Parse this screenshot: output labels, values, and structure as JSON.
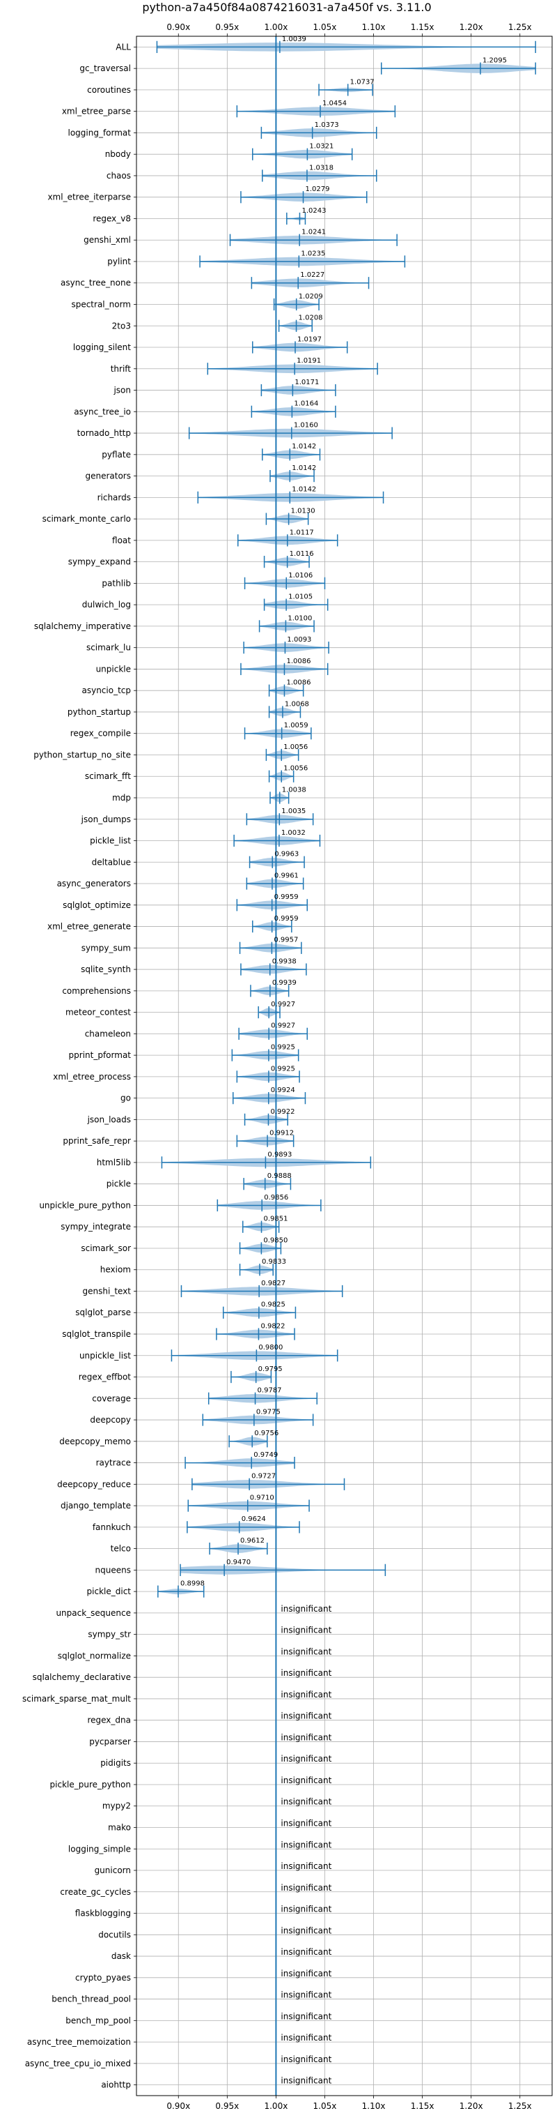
{
  "chart_data": {
    "type": "violin",
    "title": "python-a7a450f84a0874216031-a7a450f vs. 3.11.0",
    "xlabel": "",
    "ylabel": "",
    "xlim": [
      0.857,
      1.283
    ],
    "xticks": [
      0.9,
      0.95,
      1.0,
      1.05,
      1.1,
      1.15,
      1.2,
      1.25
    ],
    "xtick_labels": [
      "0.90x",
      "0.95x",
      "1.00x",
      "1.05x",
      "1.10x",
      "1.15x",
      "1.20x",
      "1.25x"
    ],
    "reference_line": 1.0,
    "grid": true,
    "colors": {
      "violin": "#aecbe5",
      "lines": "#1f77b4",
      "grid": "#b0b0b0"
    },
    "insignificant_label": "insignificant",
    "benchmarks": [
      {
        "name": "ALL",
        "label": "1.0039",
        "min": 0.878,
        "max": 1.266,
        "mean": 1.0039,
        "width": 0.07
      },
      {
        "name": "gc_traversal",
        "label": "1.2095",
        "min": 1.108,
        "max": 1.266,
        "mean": 1.2095,
        "width": 0.075
      },
      {
        "name": "coroutines",
        "label": "1.0737",
        "min": 1.044,
        "max": 1.099,
        "mean": 1.0737,
        "width": 0.035
      },
      {
        "name": "xml_etree_parse",
        "label": "1.0454",
        "min": 0.96,
        "max": 1.122,
        "mean": 1.0454,
        "width": 0.07
      },
      {
        "name": "logging_format",
        "label": "1.0373",
        "min": 0.985,
        "max": 1.103,
        "mean": 1.0373,
        "width": 0.07
      },
      {
        "name": "nbody",
        "label": "1.0321",
        "min": 0.976,
        "max": 1.078,
        "mean": 1.0321,
        "width": 0.07
      },
      {
        "name": "chaos",
        "label": "1.0318",
        "min": 0.986,
        "max": 1.103,
        "mean": 1.0318,
        "width": 0.07
      },
      {
        "name": "xml_etree_iterparse",
        "label": "1.0279",
        "min": 0.964,
        "max": 1.093,
        "mean": 1.0279,
        "width": 0.07
      },
      {
        "name": "regex_v8",
        "label": "1.0243",
        "min": 1.011,
        "max": 1.03,
        "mean": 1.0243,
        "width": 0.012
      },
      {
        "name": "genshi_xml",
        "label": "1.0241",
        "min": 0.953,
        "max": 1.124,
        "mean": 1.0241,
        "width": 0.07
      },
      {
        "name": "pylint",
        "label": "1.0235",
        "min": 0.922,
        "max": 1.132,
        "mean": 1.0235,
        "width": 0.07
      },
      {
        "name": "async_tree_none",
        "label": "1.0227",
        "min": 0.975,
        "max": 1.095,
        "mean": 1.0227,
        "width": 0.07
      },
      {
        "name": "spectral_norm",
        "label": "1.0209",
        "min": 0.998,
        "max": 1.044,
        "mean": 1.0209,
        "width": 0.07
      },
      {
        "name": "2to3",
        "label": "1.0208",
        "min": 1.003,
        "max": 1.037,
        "mean": 1.0208,
        "width": 0.07
      },
      {
        "name": "logging_silent",
        "label": "1.0197",
        "min": 0.976,
        "max": 1.073,
        "mean": 1.0197,
        "width": 0.07
      },
      {
        "name": "thrift",
        "label": "1.0191",
        "min": 0.93,
        "max": 1.104,
        "mean": 1.0191,
        "width": 0.07
      },
      {
        "name": "json",
        "label": "1.0171",
        "min": 0.985,
        "max": 1.061,
        "mean": 1.0171,
        "width": 0.07
      },
      {
        "name": "async_tree_io",
        "label": "1.0164",
        "min": 0.975,
        "max": 1.061,
        "mean": 1.0164,
        "width": 0.07
      },
      {
        "name": "tornado_http",
        "label": "1.0160",
        "min": 0.911,
        "max": 1.119,
        "mean": 1.016,
        "width": 0.07
      },
      {
        "name": "pyflate",
        "label": "1.0142",
        "min": 0.986,
        "max": 1.045,
        "mean": 1.0142,
        "width": 0.07
      },
      {
        "name": "generators",
        "label": "1.0142",
        "min": 0.994,
        "max": 1.039,
        "mean": 1.0142,
        "width": 0.07
      },
      {
        "name": "richards",
        "label": "1.0142",
        "min": 0.92,
        "max": 1.11,
        "mean": 1.0142,
        "width": 0.07
      },
      {
        "name": "scimark_monte_carlo",
        "label": "1.0130",
        "min": 0.99,
        "max": 1.033,
        "mean": 1.013,
        "width": 0.07
      },
      {
        "name": "float",
        "label": "1.0117",
        "min": 0.961,
        "max": 1.063,
        "mean": 1.0117,
        "width": 0.07
      },
      {
        "name": "sympy_expand",
        "label": "1.0116",
        "min": 0.988,
        "max": 1.034,
        "mean": 1.0116,
        "width": 0.07
      },
      {
        "name": "pathlib",
        "label": "1.0106",
        "min": 0.968,
        "max": 1.05,
        "mean": 1.0106,
        "width": 0.07
      },
      {
        "name": "dulwich_log",
        "label": "1.0105",
        "min": 0.988,
        "max": 1.053,
        "mean": 1.0105,
        "width": 0.07
      },
      {
        "name": "sqlalchemy_imperative",
        "label": "1.0100",
        "min": 0.983,
        "max": 1.039,
        "mean": 1.01,
        "width": 0.07
      },
      {
        "name": "scimark_lu",
        "label": "1.0093",
        "min": 0.967,
        "max": 1.054,
        "mean": 1.0093,
        "width": 0.07
      },
      {
        "name": "unpickle",
        "label": "1.0086",
        "min": 0.964,
        "max": 1.053,
        "mean": 1.0086,
        "width": 0.07
      },
      {
        "name": "asyncio_tcp",
        "label": "1.0086",
        "min": 0.993,
        "max": 1.028,
        "mean": 1.0086,
        "width": 0.07
      },
      {
        "name": "python_startup",
        "label": "1.0068",
        "min": 0.993,
        "max": 1.025,
        "mean": 1.0068,
        "width": 0.07
      },
      {
        "name": "regex_compile",
        "label": "1.0059",
        "min": 0.968,
        "max": 1.036,
        "mean": 1.0059,
        "width": 0.07
      },
      {
        "name": "python_startup_no_site",
        "label": "1.0056",
        "min": 0.99,
        "max": 1.023,
        "mean": 1.0056,
        "width": 0.07
      },
      {
        "name": "scimark_fft",
        "label": "1.0056",
        "min": 0.993,
        "max": 1.018,
        "mean": 1.0056,
        "width": 0.07
      },
      {
        "name": "mdp",
        "label": "1.0038",
        "min": 0.994,
        "max": 1.013,
        "mean": 1.0038,
        "width": 0.07
      },
      {
        "name": "json_dumps",
        "label": "1.0035",
        "min": 0.97,
        "max": 1.038,
        "mean": 1.0035,
        "width": 0.07
      },
      {
        "name": "pickle_list",
        "label": "1.0032",
        "min": 0.957,
        "max": 1.045,
        "mean": 1.0032,
        "width": 0.07
      },
      {
        "name": "deltablue",
        "label": "0.9963",
        "min": 0.973,
        "max": 1.029,
        "mean": 0.9963,
        "width": 0.07
      },
      {
        "name": "async_generators",
        "label": "0.9961",
        "min": 0.97,
        "max": 1.028,
        "mean": 0.9961,
        "width": 0.07
      },
      {
        "name": "sqlglot_optimize",
        "label": "0.9959",
        "min": 0.96,
        "max": 1.032,
        "mean": 0.9959,
        "width": 0.07
      },
      {
        "name": "xml_etree_generate",
        "label": "0.9959",
        "min": 0.976,
        "max": 1.016,
        "mean": 0.9959,
        "width": 0.07
      },
      {
        "name": "sympy_sum",
        "label": "0.9957",
        "min": 0.963,
        "max": 1.026,
        "mean": 0.9957,
        "width": 0.07
      },
      {
        "name": "sqlite_synth",
        "label": "0.9938",
        "min": 0.964,
        "max": 1.031,
        "mean": 0.9938,
        "width": 0.07
      },
      {
        "name": "comprehensions",
        "label": "0.9939",
        "min": 0.974,
        "max": 1.013,
        "mean": 0.9939,
        "width": 0.07
      },
      {
        "name": "meteor_contest",
        "label": "0.9927",
        "min": 0.982,
        "max": 1.004,
        "mean": 0.9927,
        "width": 0.07
      },
      {
        "name": "chameleon",
        "label": "0.9927",
        "min": 0.962,
        "max": 1.032,
        "mean": 0.9927,
        "width": 0.07
      },
      {
        "name": "pprint_pformat",
        "label": "0.9925",
        "min": 0.955,
        "max": 1.023,
        "mean": 0.9925,
        "width": 0.07
      },
      {
        "name": "xml_etree_process",
        "label": "0.9925",
        "min": 0.96,
        "max": 1.024,
        "mean": 0.9925,
        "width": 0.07
      },
      {
        "name": "go",
        "label": "0.9924",
        "min": 0.956,
        "max": 1.03,
        "mean": 0.9924,
        "width": 0.07
      },
      {
        "name": "json_loads",
        "label": "0.9922",
        "min": 0.968,
        "max": 1.012,
        "mean": 0.9922,
        "width": 0.07
      },
      {
        "name": "pprint_safe_repr",
        "label": "0.9912",
        "min": 0.96,
        "max": 1.018,
        "mean": 0.9912,
        "width": 0.07
      },
      {
        "name": "html5lib",
        "label": "0.9893",
        "min": 0.883,
        "max": 1.097,
        "mean": 0.9893,
        "width": 0.07
      },
      {
        "name": "pickle",
        "label": "0.9888",
        "min": 0.967,
        "max": 1.015,
        "mean": 0.9888,
        "width": 0.07
      },
      {
        "name": "unpickle_pure_python",
        "label": "0.9856",
        "min": 0.94,
        "max": 1.046,
        "mean": 0.9856,
        "width": 0.07
      },
      {
        "name": "sympy_integrate",
        "label": "0.9851",
        "min": 0.966,
        "max": 1.003,
        "mean": 0.9851,
        "width": 0.07
      },
      {
        "name": "scimark_sor",
        "label": "0.9850",
        "min": 0.963,
        "max": 1.005,
        "mean": 0.985,
        "width": 0.07
      },
      {
        "name": "hexiom",
        "label": "0.9833",
        "min": 0.963,
        "max": 0.997,
        "mean": 0.9833,
        "width": 0.07
      },
      {
        "name": "genshi_text",
        "label": "0.9827",
        "min": 0.903,
        "max": 1.068,
        "mean": 0.9827,
        "width": 0.07
      },
      {
        "name": "sqlglot_parse",
        "label": "0.9825",
        "min": 0.946,
        "max": 1.02,
        "mean": 0.9825,
        "width": 0.07
      },
      {
        "name": "sqlglot_transpile",
        "label": "0.9822",
        "min": 0.939,
        "max": 1.019,
        "mean": 0.9822,
        "width": 0.07
      },
      {
        "name": "unpickle_list",
        "label": "0.9800",
        "min": 0.893,
        "max": 1.063,
        "mean": 0.98,
        "width": 0.07
      },
      {
        "name": "regex_effbot",
        "label": "0.9795",
        "min": 0.954,
        "max": 0.995,
        "mean": 0.9795,
        "width": 0.07
      },
      {
        "name": "coverage",
        "label": "0.9787",
        "min": 0.931,
        "max": 1.042,
        "mean": 0.9787,
        "width": 0.07
      },
      {
        "name": "deepcopy",
        "label": "0.9775",
        "min": 0.925,
        "max": 1.038,
        "mean": 0.9775,
        "width": 0.07
      },
      {
        "name": "deepcopy_memo",
        "label": "0.9756",
        "min": 0.952,
        "max": 0.991,
        "mean": 0.9756,
        "width": 0.07
      },
      {
        "name": "raytrace",
        "label": "0.9749",
        "min": 0.907,
        "max": 1.019,
        "mean": 0.9749,
        "width": 0.07
      },
      {
        "name": "deepcopy_reduce",
        "label": "0.9727",
        "min": 0.914,
        "max": 1.07,
        "mean": 0.9727,
        "width": 0.07
      },
      {
        "name": "django_template",
        "label": "0.9710",
        "min": 0.91,
        "max": 1.034,
        "mean": 0.971,
        "width": 0.07
      },
      {
        "name": "fannkuch",
        "label": "0.9624",
        "min": 0.909,
        "max": 1.024,
        "mean": 0.9624,
        "width": 0.07
      },
      {
        "name": "telco",
        "label": "0.9612",
        "min": 0.932,
        "max": 0.991,
        "mean": 0.9612,
        "width": 0.07
      },
      {
        "name": "nqueens",
        "label": "0.9470",
        "min": 0.902,
        "max": 1.112,
        "mean": 0.947,
        "width": 0.07
      },
      {
        "name": "pickle_dict",
        "label": "0.8998",
        "min": 0.879,
        "max": 0.926,
        "mean": 0.8998,
        "width": 0.045
      }
    ],
    "insignificant": [
      "unpack_sequence",
      "sympy_str",
      "sqlglot_normalize",
      "sqlalchemy_declarative",
      "scimark_sparse_mat_mult",
      "regex_dna",
      "pycparser",
      "pidigits",
      "pickle_pure_python",
      "mypy2",
      "mako",
      "logging_simple",
      "gunicorn",
      "create_gc_cycles",
      "flaskblogging",
      "docutils",
      "dask",
      "crypto_pyaes",
      "bench_thread_pool",
      "bench_mp_pool",
      "async_tree_memoization",
      "async_tree_cpu_io_mixed",
      "aiohttp"
    ]
  }
}
